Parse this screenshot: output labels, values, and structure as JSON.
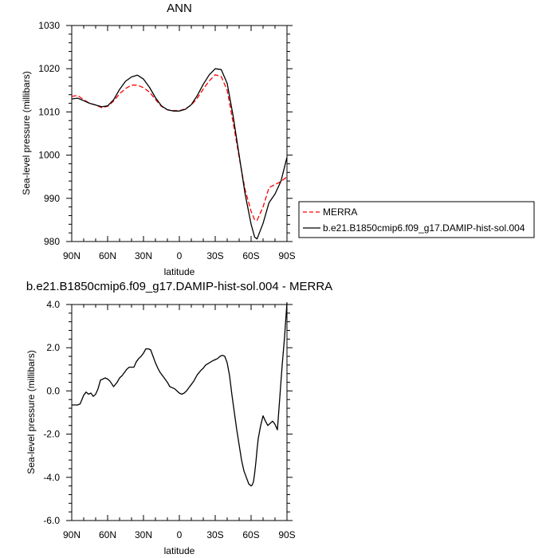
{
  "chart_data": [
    {
      "type": "line",
      "title": "ANN",
      "xlabel": "latitude",
      "ylabel": "Sea-level pressure (millibars)",
      "xlim": [
        90,
        -90
      ],
      "ylim": [
        980,
        1030
      ],
      "xticks": [
        90,
        60,
        30,
        0,
        -30,
        -60,
        -90
      ],
      "xtick_labels": [
        "90N",
        "60N",
        "30N",
        "0",
        "30S",
        "60S",
        "90S"
      ],
      "yticks": [
        980,
        990,
        1000,
        1010,
        1020,
        1030
      ],
      "ytick_labels": [
        "980",
        "990",
        "1000",
        "1010",
        "1020",
        "1030"
      ],
      "legend_position": "right",
      "series": [
        {
          "name": "MERRA",
          "color": "#ff0000",
          "style": "dashed",
          "x": [
            90,
            85,
            80,
            75,
            70,
            65,
            60,
            55,
            50,
            45,
            40,
            35,
            30,
            25,
            20,
            15,
            10,
            5,
            0,
            -5,
            -10,
            -15,
            -20,
            -25,
            -30,
            -35,
            -40,
            -45,
            -50,
            -55,
            -60,
            -63,
            -65,
            -70,
            -75,
            -80,
            -85,
            -90
          ],
          "y": [
            1013.6,
            1013.8,
            1012.8,
            1012.0,
            1011.6,
            1011.0,
            1011.3,
            1012.5,
            1014.2,
            1015.4,
            1016.2,
            1016.2,
            1015.6,
            1014.6,
            1012.9,
            1011.3,
            1010.5,
            1010.3,
            1010.3,
            1010.7,
            1011.6,
            1013.2,
            1015.3,
            1017.2,
            1018.6,
            1018.2,
            1015.0,
            1007.5,
            999.5,
            992.0,
            987.0,
            985.0,
            984.9,
            988.0,
            992.5,
            993.2,
            993.9,
            995.0
          ]
        },
        {
          "name": "b.e21.B1850cmip6.f09_g17.DAMIP-hist-sol.004",
          "color": "#000000",
          "style": "solid",
          "x": [
            90,
            85,
            80,
            75,
            70,
            65,
            60,
            55,
            50,
            45,
            40,
            35,
            30,
            25,
            20,
            15,
            10,
            5,
            0,
            -5,
            -10,
            -15,
            -20,
            -25,
            -30,
            -35,
            -40,
            -45,
            -50,
            -55,
            -60,
            -63,
            -65,
            -70,
            -75,
            -80,
            -85,
            -90
          ],
          "y": [
            1013.0,
            1013.2,
            1012.6,
            1012.0,
            1011.6,
            1011.2,
            1011.4,
            1012.8,
            1015.2,
            1017.1,
            1018.1,
            1018.5,
            1017.6,
            1015.7,
            1013.3,
            1011.4,
            1010.5,
            1010.2,
            1010.2,
            1010.6,
            1011.7,
            1013.8,
            1016.4,
            1018.6,
            1020.0,
            1019.8,
            1016.6,
            1009.0,
            1000.0,
            991.0,
            984.0,
            981.0,
            980.6,
            984.2,
            989.0,
            991.0,
            994.0,
            999.5
          ]
        }
      ]
    },
    {
      "type": "line",
      "title": "b.e21.B1850cmip6.f09_g17.DAMIP-hist-sol.004 - MERRA",
      "xlabel": "latitude",
      "ylabel": "Sea-level pressure (millibars)",
      "xlim": [
        90,
        -90
      ],
      "ylim": [
        -6.0,
        4.0
      ],
      "xticks": [
        90,
        60,
        30,
        0,
        -30,
        -60,
        -90
      ],
      "xtick_labels": [
        "90N",
        "60N",
        "30N",
        "0",
        "30S",
        "60S",
        "90S"
      ],
      "yticks": [
        -6,
        -4,
        -2,
        0,
        2,
        4
      ],
      "ytick_labels": [
        "-6.0",
        "-4.0",
        "-2.0",
        "0.0",
        "2.0",
        "4.0"
      ],
      "series": [
        {
          "color": "#000000",
          "style": "solid",
          "x": [
            90,
            85,
            83,
            80,
            78,
            76,
            74,
            72,
            70,
            68,
            66,
            64,
            62,
            60,
            58,
            55,
            52,
            50,
            48,
            46,
            44,
            42,
            40,
            38,
            36,
            34,
            32,
            30,
            28,
            26,
            24,
            22,
            20,
            18,
            16,
            14,
            12,
            10,
            8,
            6,
            4,
            2,
            0,
            -2,
            -4,
            -6,
            -8,
            -10,
            -12,
            -15,
            -18,
            -20,
            -22,
            -25,
            -28,
            -30,
            -32,
            -34,
            -36,
            -38,
            -40,
            -42,
            -44,
            -46,
            -48,
            -50,
            -52,
            -54,
            -56,
            -58,
            -60,
            -61,
            -62,
            -63,
            -64,
            -65,
            -66,
            -68,
            -70,
            -72,
            -74,
            -76,
            -78,
            -80,
            -82,
            -84,
            -86,
            -88,
            -90
          ],
          "y": [
            -0.65,
            -0.65,
            -0.6,
            -0.2,
            -0.05,
            -0.15,
            -0.1,
            -0.25,
            -0.15,
            0.1,
            0.5,
            0.55,
            0.6,
            0.55,
            0.45,
            0.2,
            0.4,
            0.6,
            0.7,
            0.85,
            1.0,
            1.1,
            1.1,
            1.1,
            1.35,
            1.5,
            1.6,
            1.75,
            1.95,
            1.95,
            1.9,
            1.6,
            1.3,
            1.05,
            0.85,
            0.7,
            0.55,
            0.4,
            0.2,
            0.15,
            0.1,
            0.0,
            -0.1,
            -0.15,
            -0.1,
            0.0,
            0.15,
            0.3,
            0.45,
            0.75,
            0.95,
            1.05,
            1.2,
            1.3,
            1.4,
            1.45,
            1.5,
            1.6,
            1.65,
            1.6,
            1.3,
            0.7,
            -0.2,
            -1.0,
            -1.8,
            -2.5,
            -3.2,
            -3.7,
            -4.0,
            -4.3,
            -4.4,
            -4.35,
            -4.2,
            -3.8,
            -3.3,
            -2.7,
            -2.2,
            -1.6,
            -1.15,
            -1.4,
            -1.6,
            -1.5,
            -1.4,
            -1.55,
            -1.8,
            -0.3,
            1.2,
            2.5,
            4.1
          ]
        }
      ]
    }
  ]
}
